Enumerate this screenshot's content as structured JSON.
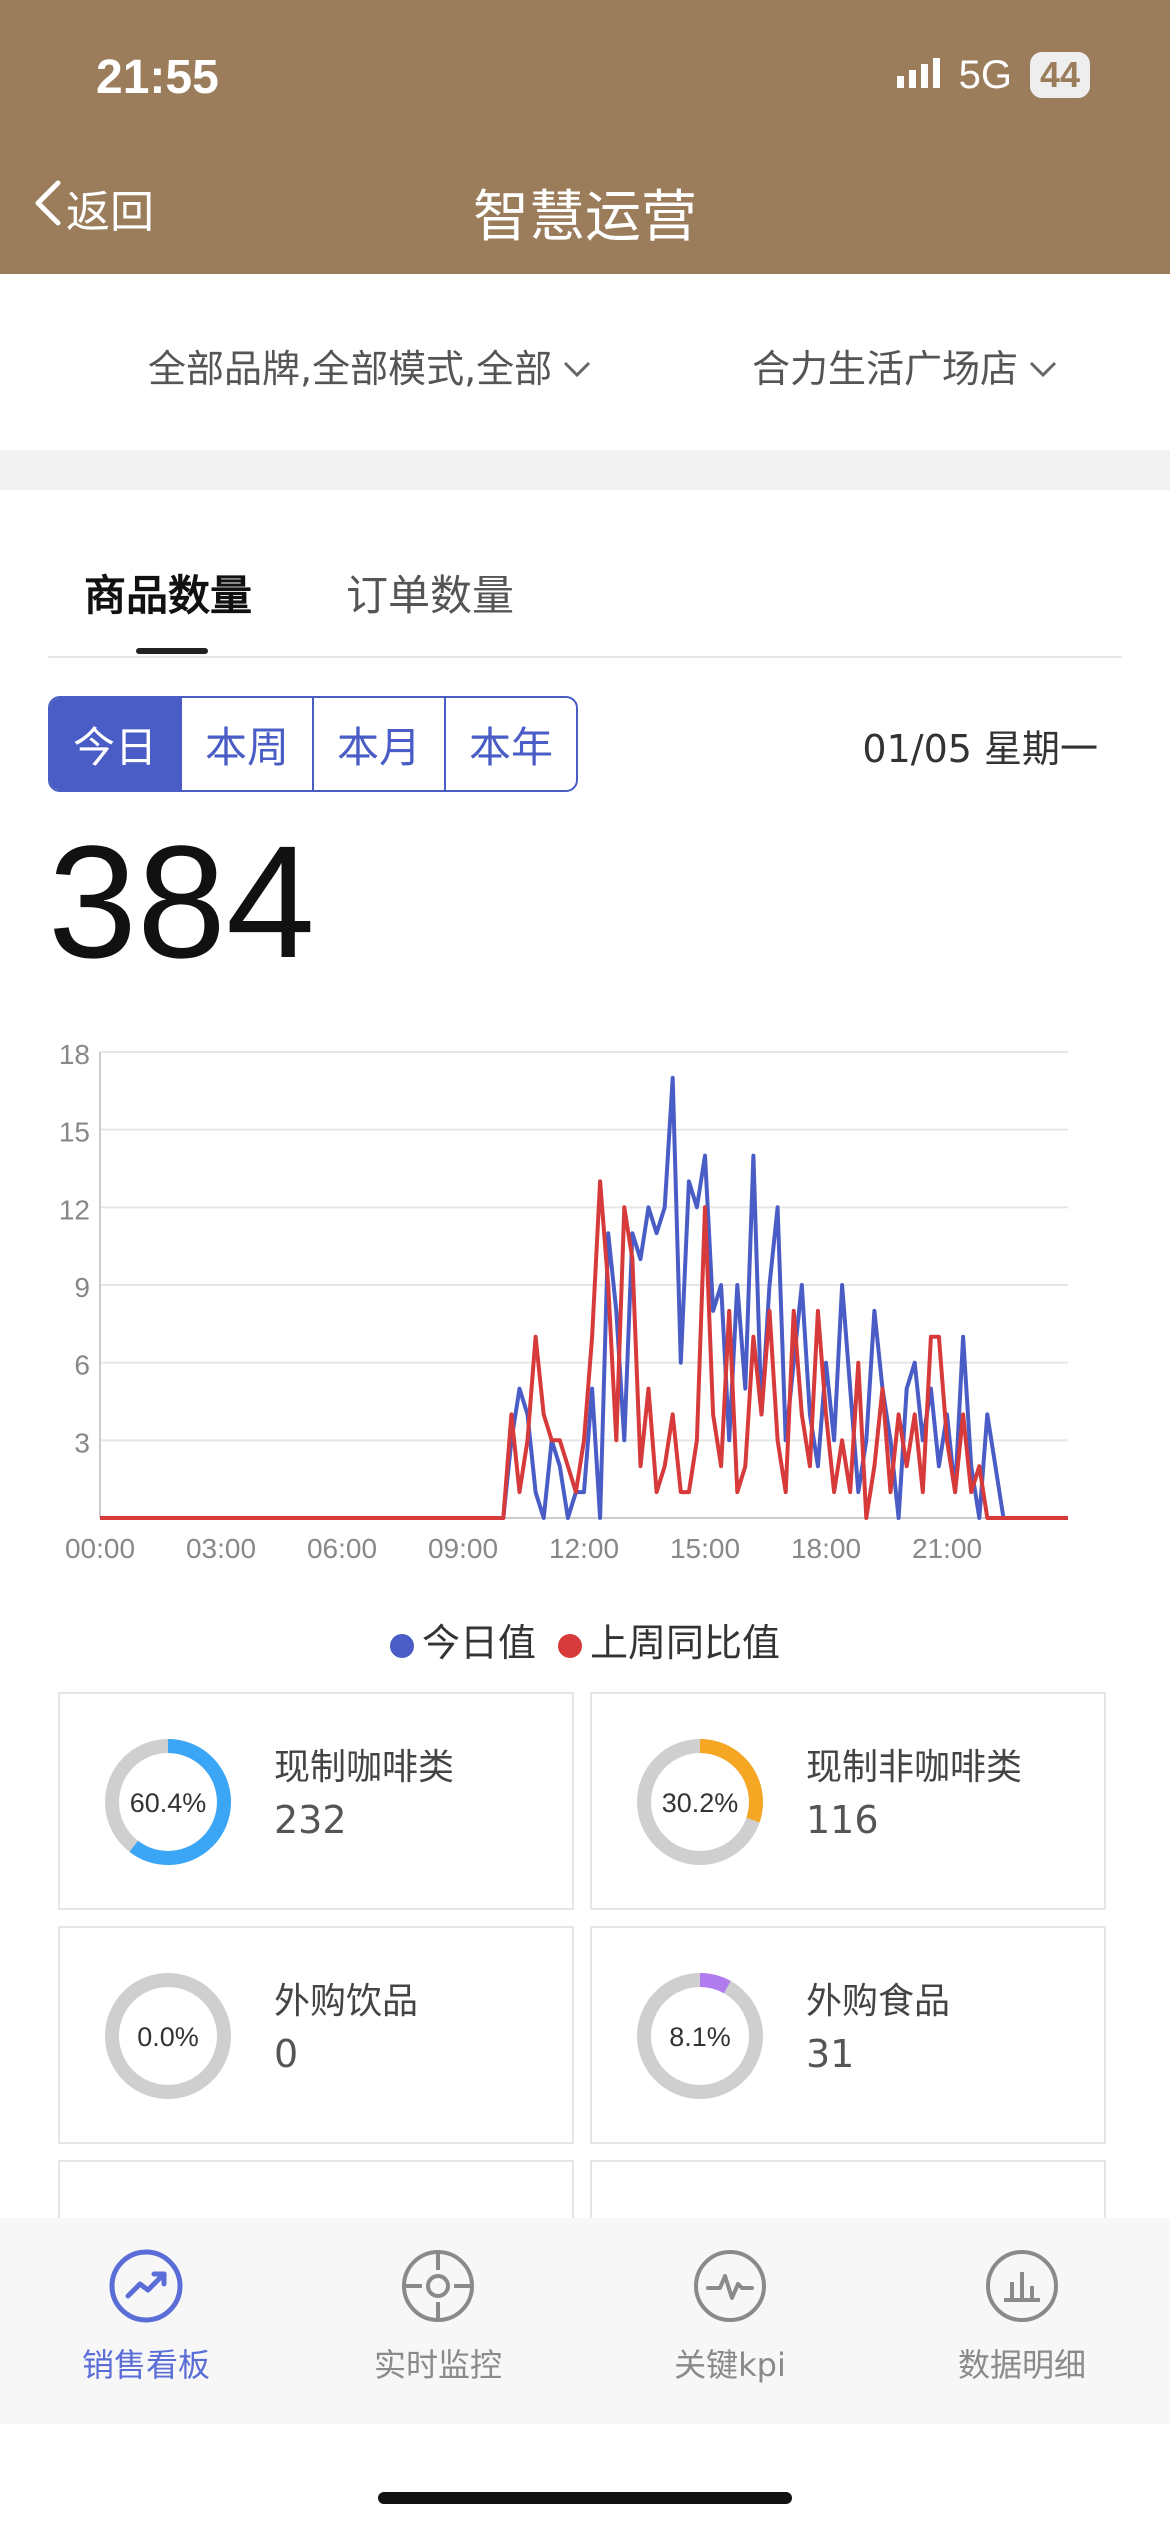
{
  "status": {
    "time": "21:55",
    "network": "5G",
    "battery": "44"
  },
  "nav": {
    "back_label": "返回",
    "title": "智慧运营"
  },
  "filters": {
    "brand_filter": "全部品牌,全部模式,全部",
    "store_filter": "合力生活广场店"
  },
  "tabs": [
    {
      "label": "商品数量",
      "active": true
    },
    {
      "label": "订单数量",
      "active": false
    }
  ],
  "period": {
    "options": [
      "今日",
      "本周",
      "本月",
      "本年"
    ],
    "selected": "今日",
    "date": "01/05 星期一"
  },
  "summary": {
    "total": "384"
  },
  "colors": {
    "brand": "#9b7d5c",
    "accent": "#4a5cc6",
    "today": "#4a5cc6",
    "last_week": "#d63a3a"
  },
  "chart_data": {
    "type": "line",
    "ylim": [
      0,
      18
    ],
    "yticks": [
      "3",
      "6",
      "9",
      "12",
      "15",
      "18"
    ],
    "xticks": [
      "00:00",
      "03:00",
      "06:00",
      "09:00",
      "12:00",
      "15:00",
      "18:00",
      "21:00"
    ],
    "x_range_hours": [
      0,
      24
    ],
    "grid": true,
    "legend_position": "bottom",
    "series": [
      {
        "name": "今日值",
        "color": "#4a5cc6",
        "points": [
          [
            0,
            0
          ],
          [
            10,
            0
          ],
          [
            10.2,
            3
          ],
          [
            10.4,
            5
          ],
          [
            10.6,
            4
          ],
          [
            10.8,
            1
          ],
          [
            11,
            0
          ],
          [
            11.2,
            3
          ],
          [
            11.4,
            2
          ],
          [
            11.6,
            0
          ],
          [
            11.8,
            1
          ],
          [
            12,
            1
          ],
          [
            12.2,
            5
          ],
          [
            12.4,
            0
          ],
          [
            12.6,
            11
          ],
          [
            12.8,
            8
          ],
          [
            13,
            3
          ],
          [
            13.2,
            11
          ],
          [
            13.4,
            10
          ],
          [
            13.6,
            12
          ],
          [
            13.8,
            11
          ],
          [
            14,
            12
          ],
          [
            14.2,
            17
          ],
          [
            14.4,
            6
          ],
          [
            14.6,
            13
          ],
          [
            14.8,
            12
          ],
          [
            15,
            14
          ],
          [
            15.2,
            8
          ],
          [
            15.4,
            9
          ],
          [
            15.6,
            3
          ],
          [
            15.8,
            9
          ],
          [
            16,
            5
          ],
          [
            16.2,
            14
          ],
          [
            16.4,
            4
          ],
          [
            16.6,
            9
          ],
          [
            16.8,
            12
          ],
          [
            17,
            3
          ],
          [
            17.2,
            6
          ],
          [
            17.4,
            9
          ],
          [
            17.6,
            4
          ],
          [
            17.8,
            2
          ],
          [
            18,
            6
          ],
          [
            18.2,
            3
          ],
          [
            18.4,
            9
          ],
          [
            18.6,
            5
          ],
          [
            18.8,
            1
          ],
          [
            19,
            3
          ],
          [
            19.2,
            8
          ],
          [
            19.4,
            5
          ],
          [
            19.6,
            3
          ],
          [
            19.8,
            0
          ],
          [
            20,
            5
          ],
          [
            20.2,
            6
          ],
          [
            20.4,
            3
          ],
          [
            20.6,
            5
          ],
          [
            20.8,
            2
          ],
          [
            21,
            4
          ],
          [
            21.2,
            1
          ],
          [
            21.4,
            7
          ],
          [
            21.6,
            2
          ],
          [
            21.8,
            0
          ],
          [
            22,
            4
          ],
          [
            22.2,
            2
          ],
          [
            22.4,
            0
          ],
          [
            24,
            0
          ]
        ]
      },
      {
        "name": "上周同比值",
        "color": "#d63a3a",
        "points": [
          [
            0,
            0
          ],
          [
            10,
            0
          ],
          [
            10.2,
            4
          ],
          [
            10.4,
            1
          ],
          [
            10.6,
            3
          ],
          [
            10.8,
            7
          ],
          [
            11,
            4
          ],
          [
            11.2,
            3
          ],
          [
            11.4,
            3
          ],
          [
            11.6,
            2
          ],
          [
            11.8,
            1
          ],
          [
            12,
            3
          ],
          [
            12.2,
            7
          ],
          [
            12.4,
            13
          ],
          [
            12.6,
            9
          ],
          [
            12.8,
            3
          ],
          [
            13,
            12
          ],
          [
            13.2,
            10
          ],
          [
            13.4,
            2
          ],
          [
            13.6,
            5
          ],
          [
            13.8,
            1
          ],
          [
            14,
            2
          ],
          [
            14.2,
            4
          ],
          [
            14.4,
            1
          ],
          [
            14.6,
            1
          ],
          [
            14.8,
            3
          ],
          [
            15,
            12
          ],
          [
            15.2,
            4
          ],
          [
            15.4,
            2
          ],
          [
            15.6,
            8
          ],
          [
            15.8,
            1
          ],
          [
            16,
            2
          ],
          [
            16.2,
            7
          ],
          [
            16.4,
            4
          ],
          [
            16.6,
            8
          ],
          [
            16.8,
            3
          ],
          [
            17,
            1
          ],
          [
            17.2,
            8
          ],
          [
            17.4,
            4
          ],
          [
            17.6,
            2
          ],
          [
            17.8,
            8
          ],
          [
            18,
            4
          ],
          [
            18.2,
            1
          ],
          [
            18.4,
            3
          ],
          [
            18.6,
            1
          ],
          [
            18.8,
            6
          ],
          [
            19,
            0
          ],
          [
            19.2,
            2
          ],
          [
            19.4,
            5
          ],
          [
            19.6,
            1
          ],
          [
            19.8,
            4
          ],
          [
            20,
            2
          ],
          [
            20.2,
            4
          ],
          [
            20.4,
            1
          ],
          [
            20.6,
            7
          ],
          [
            20.8,
            7
          ],
          [
            21,
            3
          ],
          [
            21.2,
            1
          ],
          [
            21.4,
            4
          ],
          [
            21.6,
            1
          ],
          [
            21.8,
            2
          ],
          [
            22,
            0
          ],
          [
            24,
            0
          ]
        ]
      }
    ]
  },
  "categories": [
    {
      "name": "现制咖啡类",
      "value": "232",
      "percent_label": "60.4%",
      "percent": 60.4,
      "color": "#3aa6f5"
    },
    {
      "name": "现制非咖啡类",
      "value": "116",
      "percent_label": "30.2%",
      "percent": 30.2,
      "color": "#f5a623"
    },
    {
      "name": "外购饮品",
      "value": "0",
      "percent_label": "0.0%",
      "percent": 0.0,
      "color": "#9a9a9a"
    },
    {
      "name": "外购食品",
      "value": "31",
      "percent_label": "8.1%",
      "percent": 8.1,
      "color": "#b07cf0"
    }
  ],
  "bottom_tabs": [
    {
      "label": "销售看板",
      "icon": "trend-up-icon",
      "active": true
    },
    {
      "label": "实时监控",
      "icon": "crosshair-icon",
      "active": false
    },
    {
      "label": "关键kpi",
      "icon": "pulse-icon",
      "active": false
    },
    {
      "label": "数据明细",
      "icon": "bar-chart-icon",
      "active": false
    }
  ]
}
